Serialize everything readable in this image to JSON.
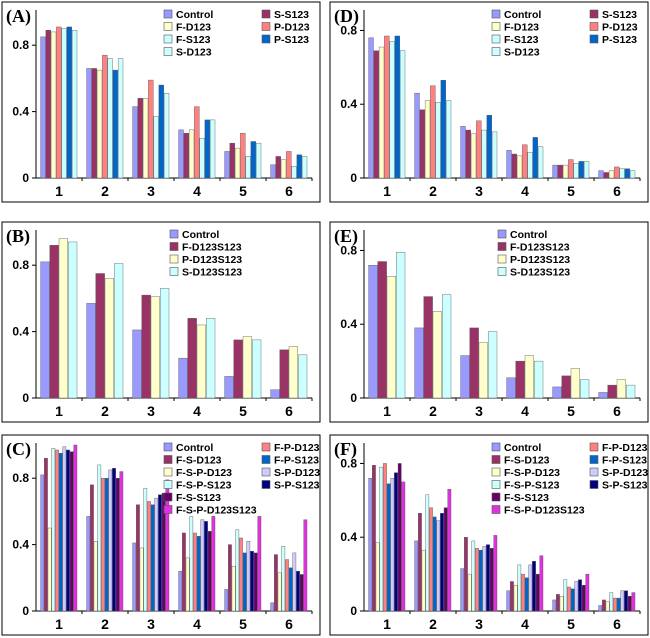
{
  "chart_data": [
    {
      "type": "bar",
      "panel_label": "(A)",
      "categories": [
        "1",
        "2",
        "3",
        "4",
        "5",
        "6"
      ],
      "ylim": [
        0,
        1.0
      ],
      "yticks": [
        "0",
        "0.4",
        "0.8"
      ],
      "legend_columns": 2,
      "series": [
        {
          "name": "Control",
          "color": "#9999FF",
          "values": [
            0.85,
            0.66,
            0.43,
            0.29,
            0.16,
            0.08
          ]
        },
        {
          "name": "S-S123",
          "color": "#993366",
          "values": [
            0.89,
            0.66,
            0.48,
            0.27,
            0.21,
            0.13
          ]
        },
        {
          "name": "F-D123",
          "color": "#FFFFCC",
          "values": [
            0.88,
            0.65,
            0.48,
            0.29,
            0.18,
            0.11
          ]
        },
        {
          "name": "P-D123",
          "color": "#FF8080",
          "values": [
            0.91,
            0.74,
            0.59,
            0.43,
            0.27,
            0.16
          ]
        },
        {
          "name": "F-S123",
          "color": "#CCFFFF",
          "values": [
            0.9,
            0.72,
            0.37,
            0.24,
            0.13,
            0.07
          ]
        },
        {
          "name": "P-S123",
          "color": "#0066CC",
          "values": [
            0.91,
            0.65,
            0.56,
            0.35,
            0.22,
            0.14
          ]
        },
        {
          "name": "S-D123",
          "color": "#CCFFFF",
          "values": [
            0.89,
            0.72,
            0.51,
            0.35,
            0.21,
            0.13
          ]
        }
      ],
      "legend_order": [
        0,
        1,
        2,
        3,
        4,
        5,
        6
      ]
    },
    {
      "type": "bar",
      "panel_label": "(D)",
      "categories": [
        "1",
        "2",
        "3",
        "4",
        "5",
        "6"
      ],
      "ylim": [
        0,
        0.9
      ],
      "yticks": [
        "0",
        "0.4",
        "0.8"
      ],
      "legend_columns": 2,
      "series": [
        {
          "name": "Control",
          "color": "#9999FF",
          "values": [
            0.76,
            0.46,
            0.28,
            0.15,
            0.07,
            0.04
          ]
        },
        {
          "name": "S-S123",
          "color": "#993366",
          "values": [
            0.69,
            0.37,
            0.26,
            0.13,
            0.07,
            0.03
          ]
        },
        {
          "name": "F-D123",
          "color": "#FFFFCC",
          "values": [
            0.71,
            0.42,
            0.24,
            0.12,
            0.07,
            0.04
          ]
        },
        {
          "name": "P-D123",
          "color": "#FF8080",
          "values": [
            0.77,
            0.5,
            0.31,
            0.18,
            0.1,
            0.06
          ]
        },
        {
          "name": "F-S123",
          "color": "#CCFFFF",
          "values": [
            0.74,
            0.41,
            0.26,
            0.14,
            0.08,
            0.05
          ]
        },
        {
          "name": "P-S123",
          "color": "#0066CC",
          "values": [
            0.77,
            0.53,
            0.34,
            0.22,
            0.09,
            0.05
          ]
        },
        {
          "name": "S-D123",
          "color": "#CCFFFF",
          "values": [
            0.69,
            0.42,
            0.25,
            0.17,
            0.09,
            0.04
          ]
        }
      ],
      "legend_order": [
        0,
        1,
        2,
        3,
        4,
        5,
        6
      ]
    },
    {
      "type": "bar",
      "panel_label": "(B)",
      "categories": [
        "1",
        "2",
        "3",
        "4",
        "5",
        "6"
      ],
      "ylim": [
        0,
        1.0
      ],
      "yticks": [
        "0",
        "0.4",
        "0.8"
      ],
      "legend_columns": 1,
      "series": [
        {
          "name": "Control",
          "color": "#9999FF",
          "values": [
            0.82,
            0.57,
            0.41,
            0.24,
            0.13,
            0.05
          ]
        },
        {
          "name": "F-D123S123",
          "color": "#993366",
          "values": [
            0.92,
            0.75,
            0.62,
            0.48,
            0.35,
            0.29
          ]
        },
        {
          "name": "P-D123S123",
          "color": "#FFFFCC",
          "values": [
            0.96,
            0.72,
            0.61,
            0.44,
            0.37,
            0.31
          ]
        },
        {
          "name": "S-D123S123",
          "color": "#CCFFFF",
          "values": [
            0.94,
            0.81,
            0.66,
            0.48,
            0.35,
            0.26
          ]
        }
      ],
      "legend_order": [
        0,
        1,
        2,
        3
      ]
    },
    {
      "type": "bar",
      "panel_label": "(E)",
      "categories": [
        "1",
        "2",
        "3",
        "4",
        "5",
        "6"
      ],
      "ylim": [
        0,
        0.9
      ],
      "yticks": [
        "0",
        "0.4",
        "0.8"
      ],
      "legend_columns": 1,
      "series": [
        {
          "name": "Control",
          "color": "#9999FF",
          "values": [
            0.72,
            0.38,
            0.23,
            0.11,
            0.06,
            0.03
          ]
        },
        {
          "name": "F-D123S123",
          "color": "#993366",
          "values": [
            0.74,
            0.55,
            0.38,
            0.2,
            0.12,
            0.07
          ]
        },
        {
          "name": "P-D123S123",
          "color": "#FFFFCC",
          "values": [
            0.66,
            0.47,
            0.3,
            0.23,
            0.16,
            0.1
          ]
        },
        {
          "name": "S-D123S123",
          "color": "#CCFFFF",
          "values": [
            0.79,
            0.56,
            0.36,
            0.2,
            0.1,
            0.07
          ]
        }
      ],
      "legend_order": [
        0,
        1,
        2,
        3
      ]
    },
    {
      "type": "bar",
      "panel_label": "(C)",
      "categories": [
        "1",
        "2",
        "3",
        "4",
        "5",
        "6"
      ],
      "ylim": [
        0,
        1.0
      ],
      "yticks": [
        "0",
        "0.4",
        "0.8"
      ],
      "legend_columns": 2,
      "series": [
        {
          "name": "Control",
          "color": "#9999FF",
          "values": [
            0.82,
            0.57,
            0.41,
            0.24,
            0.13,
            0.05
          ]
        },
        {
          "name": "F-S-D123",
          "color": "#993366",
          "values": [
            0.92,
            0.76,
            0.64,
            0.47,
            0.4,
            0.34
          ]
        },
        {
          "name": "F-S-P-D123",
          "color": "#FFFFCC",
          "values": [
            0.5,
            0.42,
            0.38,
            0.32,
            0.27,
            0.23
          ]
        },
        {
          "name": "F-S-P-S123",
          "color": "#CCFFFF",
          "values": [
            0.98,
            0.88,
            0.74,
            0.57,
            0.49,
            0.39
          ]
        },
        {
          "name": "F-P-D123",
          "color": "#FF8080",
          "values": [
            0.97,
            0.8,
            0.66,
            0.47,
            0.44,
            0.31
          ]
        },
        {
          "name": "F-P-S123",
          "color": "#0066CC",
          "values": [
            0.95,
            0.8,
            0.64,
            0.45,
            0.35,
            0.26
          ]
        },
        {
          "name": "S-P-D123",
          "color": "#CCCCFF",
          "values": [
            0.99,
            0.85,
            0.68,
            0.55,
            0.42,
            0.35
          ]
        },
        {
          "name": "S-P-S123",
          "color": "#000080",
          "values": [
            0.97,
            0.86,
            0.7,
            0.54,
            0.36,
            0.24
          ]
        },
        {
          "name": "F-S-S123",
          "color": "#660066",
          "values": [
            0.96,
            0.8,
            0.71,
            0.48,
            0.35,
            0.22
          ]
        },
        {
          "name": "F-S-P-D123S123",
          "color": "#E030E0",
          "values": [
            1.0,
            0.84,
            0.79,
            0.57,
            0.57,
            0.55
          ]
        }
      ],
      "legend_order": [
        0,
        4,
        1,
        5,
        2,
        6,
        3,
        7,
        8,
        9
      ]
    },
    {
      "type": "bar",
      "panel_label": "(F)",
      "categories": [
        "1",
        "2",
        "3",
        "4",
        "5",
        "6"
      ],
      "ylim": [
        0,
        0.9
      ],
      "yticks": [
        "0",
        "0.4",
        "0.8"
      ],
      "legend_columns": 2,
      "series": [
        {
          "name": "Control",
          "color": "#9999FF",
          "values": [
            0.72,
            0.38,
            0.23,
            0.11,
            0.06,
            0.03
          ]
        },
        {
          "name": "F-S-D123",
          "color": "#993366",
          "values": [
            0.79,
            0.53,
            0.4,
            0.16,
            0.09,
            0.06
          ]
        },
        {
          "name": "F-S-P-D123",
          "color": "#FFFFCC",
          "values": [
            0.37,
            0.33,
            0.2,
            0.14,
            0.08,
            0.05
          ]
        },
        {
          "name": "F-S-P-S123",
          "color": "#CCFFFF",
          "values": [
            0.78,
            0.63,
            0.38,
            0.25,
            0.17,
            0.1
          ]
        },
        {
          "name": "F-P-D123",
          "color": "#FF8080",
          "values": [
            0.8,
            0.56,
            0.34,
            0.2,
            0.13,
            0.07
          ]
        },
        {
          "name": "F-P-S123",
          "color": "#0066CC",
          "values": [
            0.69,
            0.51,
            0.33,
            0.18,
            0.12,
            0.07
          ]
        },
        {
          "name": "S-P-D123",
          "color": "#CCCCFF",
          "values": [
            0.72,
            0.49,
            0.35,
            0.25,
            0.16,
            0.11
          ]
        },
        {
          "name": "S-P-S123",
          "color": "#000080",
          "values": [
            0.75,
            0.53,
            0.36,
            0.27,
            0.17,
            0.11
          ]
        },
        {
          "name": "F-S-S123",
          "color": "#660066",
          "values": [
            0.8,
            0.56,
            0.34,
            0.2,
            0.14,
            0.08
          ]
        },
        {
          "name": "F-S-P-D123S123",
          "color": "#E030E0",
          "values": [
            0.7,
            0.66,
            0.41,
            0.3,
            0.2,
            0.1
          ]
        }
      ],
      "legend_order": [
        0,
        4,
        1,
        5,
        2,
        6,
        3,
        7,
        8,
        9
      ]
    }
  ]
}
